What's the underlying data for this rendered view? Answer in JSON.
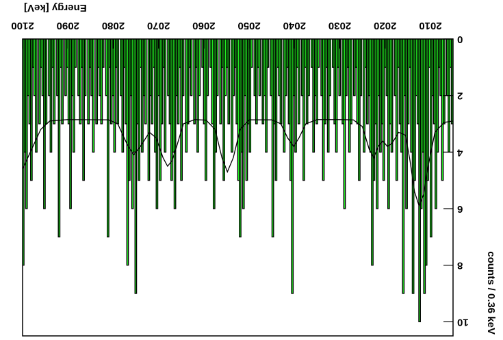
{
  "chart_data": {
    "type": "histogram",
    "x_label": "Energy [keV]",
    "y_label": "counts / 0.36 keV",
    "xlim": [
      2005,
      2100
    ],
    "ylim": [
      0,
      10.5
    ],
    "xticks": [
      2010,
      2020,
      2030,
      2040,
      2050,
      2060,
      2070,
      2080,
      2090,
      2100
    ],
    "yticks": [
      0,
      2,
      4,
      6,
      8,
      10
    ],
    "color": "#22ee22",
    "bins": [
      2005,
      2005.36,
      2005.72,
      2006.08,
      2006.44,
      2006.8,
      2007.16,
      2007.52,
      2007.88,
      2008.24,
      2008.6,
      2008.96,
      2009.32,
      2009.68,
      2010.04,
      2010.4,
      2010.76,
      2011.12,
      2011.48,
      2011.84,
      2012.2,
      2012.56,
      2012.92,
      2013.28,
      2013.64,
      2014,
      2014.36,
      2014.72,
      2015.08,
      2015.44,
      2015.8,
      2016.16,
      2016.52,
      2016.88,
      2017.24,
      2017.6,
      2017.96,
      2018.32,
      2018.68,
      2019.04,
      2019.4,
      2019.76,
      2020.12,
      2020.48,
      2020.84,
      2021.2,
      2021.56,
      2021.92,
      2022.28,
      2022.64,
      2023,
      2023.36,
      2023.72,
      2024.08,
      2024.44,
      2024.8,
      2025.16,
      2025.52,
      2025.88,
      2026.24,
      2026.6,
      2026.96,
      2027.32,
      2027.68,
      2028.04,
      2028.4,
      2028.76,
      2029.12,
      2029.48,
      2029.84,
      2030.2,
      2030.56,
      2030.92,
      2031.28,
      2031.64,
      2032,
      2032.36,
      2032.72,
      2033.08,
      2033.44,
      2033.8,
      2034.16,
      2034.52,
      2034.88,
      2035.24,
      2035.6,
      2035.96,
      2036.32,
      2036.68,
      2037.04,
      2037.4,
      2037.76,
      2038.12,
      2038.48,
      2038.84,
      2039.2,
      2039.56,
      2039.92,
      2040.28,
      2040.64,
      2041,
      2041.36,
      2041.72,
      2042.08,
      2042.44,
      2042.8,
      2043.16,
      2043.52,
      2043.88,
      2044.24,
      2044.6,
      2044.96,
      2045.32,
      2045.68,
      2046.04,
      2046.4,
      2046.76,
      2047.12,
      2047.48,
      2047.84,
      2048.2,
      2048.56,
      2048.92,
      2049.28,
      2049.64,
      2050,
      2050.36,
      2050.72,
      2051.08,
      2051.44,
      2051.8,
      2052.16,
      2052.52,
      2052.88,
      2053.24,
      2053.6,
      2053.96,
      2054.32,
      2054.68,
      2055.04,
      2055.4,
      2055.76,
      2056.12,
      2056.48,
      2056.84,
      2057.2,
      2057.56,
      2057.92,
      2058.28,
      2058.64,
      2059,
      2059.36,
      2059.72,
      2060.08,
      2060.44,
      2060.8,
      2061.16,
      2061.52,
      2061.88,
      2062.24,
      2062.6,
      2062.96,
      2063.32,
      2063.68,
      2064.04,
      2064.4,
      2064.76,
      2065.12,
      2065.48,
      2065.84,
      2066.2,
      2066.56,
      2066.92,
      2067.28,
      2067.64,
      2068,
      2068.36,
      2068.72,
      2069.08,
      2069.44,
      2069.8,
      2070.16,
      2070.52,
      2070.88,
      2071.24,
      2071.6,
      2071.96,
      2072.32,
      2072.68,
      2073.04,
      2073.4,
      2073.76,
      2074.12,
      2074.48,
      2074.84,
      2075.2,
      2075.56,
      2075.92,
      2076.28,
      2076.64,
      2077,
      2077.36,
      2077.72,
      2078.08,
      2078.44,
      2078.8,
      2079.16,
      2079.52,
      2079.88,
      2080.24,
      2080.6,
      2080.96,
      2081.32,
      2081.68,
      2082.04,
      2082.4,
      2082.76,
      2083.12,
      2083.48,
      2083.84,
      2084.2,
      2084.56,
      2084.92,
      2085.28,
      2085.64,
      2086,
      2086.36,
      2086.72,
      2087.08,
      2087.44,
      2087.8,
      2088.16,
      2088.52,
      2088.88,
      2089.24,
      2089.6,
      2089.96,
      2090.32,
      2090.68,
      2091.04,
      2091.4,
      2091.76,
      2092.12,
      2092.48,
      2092.84,
      2093.2,
      2093.56,
      2093.92,
      2094.28,
      2094.64,
      2095,
      2095.36,
      2095.72,
      2096.08,
      2096.44,
      2096.8,
      2097.16,
      2097.52,
      2097.88,
      2098.24,
      2098.6,
      2098.96,
      2099.32,
      2099.68,
      2100.04
    ],
    "counts": [
      3,
      1,
      4,
      2,
      0,
      3,
      5,
      2,
      1,
      4,
      6,
      3,
      2,
      7,
      1,
      5,
      8,
      9,
      4,
      6,
      10,
      3,
      2,
      5,
      9,
      4,
      1,
      3,
      6,
      2,
      9,
      4,
      3,
      1,
      5,
      2,
      0,
      4,
      3,
      6,
      2,
      1,
      5,
      3,
      4,
      2,
      6,
      3,
      5,
      8,
      4,
      2,
      3,
      1,
      4,
      0,
      2,
      5,
      3,
      1,
      2,
      0,
      3,
      4,
      1,
      2,
      6,
      3,
      0,
      2,
      1,
      4,
      3,
      1,
      0,
      2,
      4,
      1,
      3,
      5,
      2,
      0,
      1,
      3,
      2,
      4,
      1,
      0,
      2,
      3,
      1,
      5,
      2,
      0,
      3,
      1,
      4,
      2,
      9,
      5,
      3,
      1,
      2,
      4,
      0,
      3,
      2,
      1,
      5,
      3,
      7,
      2,
      0,
      1,
      4,
      2,
      3,
      0,
      2,
      1,
      3,
      2,
      0,
      1,
      4,
      3,
      5,
      2,
      6,
      4,
      7,
      5,
      3,
      1,
      2,
      4,
      0,
      3,
      1,
      2,
      5,
      1,
      3,
      0,
      2,
      4,
      6,
      3,
      1,
      0,
      2,
      5,
      3,
      1,
      0,
      2,
      4,
      1,
      3,
      0,
      2,
      1,
      3,
      4,
      0,
      2,
      5,
      1,
      3,
      2,
      6,
      4,
      5,
      3,
      2,
      0,
      4,
      1,
      3,
      5,
      2,
      6,
      4,
      1,
      3,
      2,
      5,
      0,
      3,
      2,
      4,
      1,
      5,
      3,
      9,
      4,
      6,
      2,
      5,
      8,
      3,
      1,
      4,
      2,
      0,
      3,
      1,
      4,
      2,
      3,
      1,
      7,
      2,
      0,
      1,
      3,
      2,
      1,
      3,
      0,
      4,
      2,
      1,
      3,
      0,
      2,
      5,
      1,
      3,
      2,
      0,
      1,
      4,
      2,
      6,
      3,
      1,
      2,
      0,
      3,
      1,
      7,
      2,
      0,
      3,
      1,
      4,
      2,
      0,
      3,
      6,
      2,
      1,
      3,
      0,
      4,
      2,
      1,
      5,
      3,
      2,
      6,
      4,
      8
    ],
    "fit": {
      "color": "#000000",
      "x": [
        2005,
        2007,
        2009,
        2010.5,
        2011.5,
        2012.5,
        2013.5,
        2014.5,
        2015.5,
        2017,
        2018.5,
        2019.5,
        2020.5,
        2021.5,
        2022.5,
        2023.5,
        2025,
        2027,
        2030,
        2035,
        2037.5,
        2039,
        2040.2,
        2041.5,
        2043,
        2045,
        2050,
        2052,
        2053.5,
        2054.8,
        2056,
        2057.5,
        2059.5,
        2062,
        2064.5,
        2066,
        2067,
        2068,
        2069,
        2070.5,
        2072,
        2074,
        2075.5,
        2077,
        2079,
        2081,
        2090,
        2094,
        2096,
        2098,
        2100
      ],
      "y": [
        2.9,
        2.95,
        3.3,
        4.5,
        5.5,
        5.9,
        5.4,
        4.3,
        3.4,
        3.3,
        3.7,
        3.8,
        3.6,
        3.8,
        4.2,
        3.9,
        3.1,
        2.86,
        2.85,
        2.85,
        3.0,
        3.5,
        3.8,
        3.5,
        3.0,
        2.86,
        2.86,
        3.2,
        4.2,
        4.7,
        4.2,
        3.2,
        2.87,
        2.85,
        3.0,
        3.8,
        4.3,
        4.5,
        4.2,
        3.5,
        3.3,
        3.8,
        4.1,
        3.7,
        3.0,
        2.86,
        2.85,
        2.9,
        3.2,
        3.9,
        4.6
      ]
    }
  }
}
